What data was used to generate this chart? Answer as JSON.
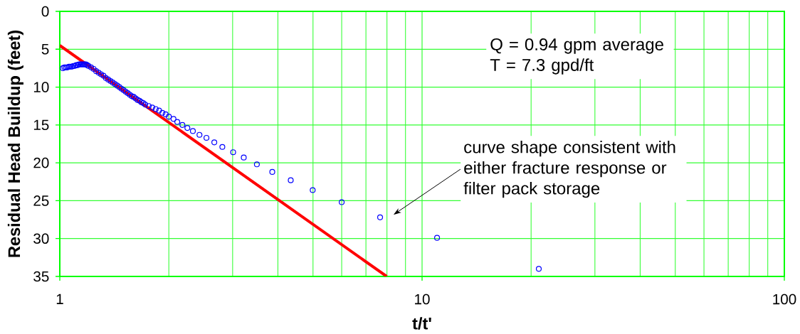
{
  "chart_data": {
    "type": "scatter",
    "xlabel": "t/t'",
    "ylabel": "Residual Head Buildup (feet)",
    "log": "x",
    "xlim": [
      1,
      100
    ],
    "ylim": [
      35,
      0
    ],
    "xticks": [
      1,
      10,
      100
    ],
    "yticks": [
      0,
      5,
      10,
      15,
      20,
      25,
      30,
      35
    ],
    "grid": true,
    "marker": "circle",
    "series": [
      {
        "type": "line",
        "color": "#ff0000",
        "marker": "none",
        "x": [
          1,
          7.99
        ],
        "values": [
          4.5,
          35
        ]
      },
      {
        "color": "#0000ff",
        "x": [
          1.02,
          1.03,
          1.04,
          1.05,
          1.06,
          1.07,
          1.08,
          1.09,
          1.1,
          1.11,
          1.12,
          1.13,
          1.14,
          1.15,
          1.16,
          1.17,
          1.18,
          1.19,
          1.2,
          1.22,
          1.24,
          1.26,
          1.28,
          1.3,
          1.32,
          1.34,
          1.36,
          1.38,
          1.4,
          1.42,
          1.44,
          1.46,
          1.48,
          1.5,
          1.52,
          1.54,
          1.56,
          1.58,
          1.6,
          1.62,
          1.64,
          1.66,
          1.68,
          1.7,
          1.72,
          1.76,
          1.8,
          1.84,
          1.88,
          1.92,
          1.96,
          2.0,
          2.06,
          2.11,
          2.18,
          2.25,
          2.33,
          2.43,
          2.54,
          2.67,
          2.81,
          3.01,
          3.22,
          3.5,
          3.86,
          4.34,
          4.99,
          6.0,
          7.66,
          11.0,
          21.0
        ],
        "values": [
          7.5,
          7.4,
          7.4,
          7.4,
          7.3,
          7.3,
          7.3,
          7.2,
          7.2,
          7.1,
          7.1,
          7.0,
          7.0,
          7.0,
          7.0,
          7.0,
          7.0,
          7.1,
          7.2,
          7.4,
          7.6,
          7.9,
          8.1,
          8.3,
          8.5,
          8.8,
          9.0,
          9.2,
          9.4,
          9.6,
          9.8,
          10.0,
          10.2,
          10.4,
          10.6,
          10.8,
          11.0,
          11.2,
          11.3,
          11.5,
          11.7,
          11.8,
          12.0,
          12.1,
          12.3,
          12.5,
          12.7,
          12.9,
          13.1,
          13.4,
          13.6,
          13.9,
          14.2,
          14.6,
          15.0,
          15.4,
          15.8,
          16.3,
          16.7,
          17.3,
          17.9,
          18.6,
          19.3,
          20.2,
          21.2,
          22.3,
          23.6,
          25.2,
          27.2,
          29.9,
          34.0
        ]
      }
    ],
    "annotations": [
      "Q = 0.94 gpm average",
      "T = 7.3 gpd/ft",
      "curve shape consistent with either fracture response or filter pack storage"
    ]
  }
}
